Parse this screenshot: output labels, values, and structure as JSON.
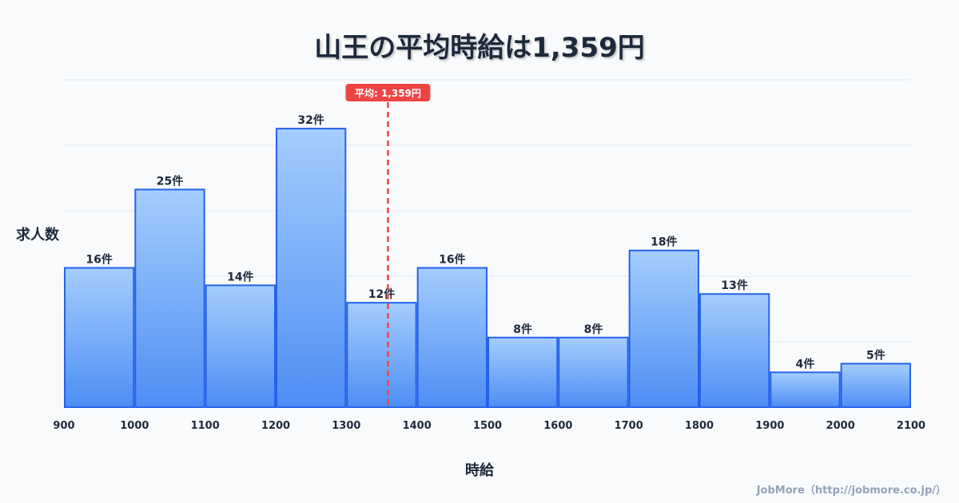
{
  "chart_data": {
    "type": "bar",
    "title": "山王の平均時給は1,359円",
    "xlabel": "時給",
    "ylabel": "求人数",
    "bin_edges": [
      900,
      1000,
      1100,
      1200,
      1300,
      1400,
      1500,
      1600,
      1700,
      1800,
      1900,
      2000,
      2100
    ],
    "values": [
      16,
      25,
      14,
      32,
      12,
      16,
      8,
      8,
      18,
      13,
      4,
      5
    ],
    "value_suffix": "件",
    "xlim": [
      900,
      2100
    ],
    "ylim": [
      0,
      37.6
    ],
    "grid": true,
    "mean": {
      "value": 1359,
      "label": "平均: 1,359円"
    },
    "colors": {
      "bar_top": "#a5cdfd",
      "bar_bottom": "#4d8ef5",
      "bar_stroke": "#2563eb",
      "mean": "#ef4444"
    }
  },
  "credit": "JobMore（http://jobmore.co.jp/）"
}
